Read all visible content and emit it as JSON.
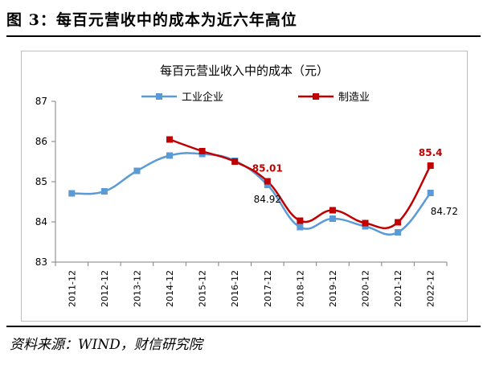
{
  "figure": {
    "title": "图 3：每百元营收中的成本为近六年高位",
    "source": "资料来源：WIND，财信研究院"
  },
  "colors": {
    "industry": "#5B9BD5",
    "manufacturing": "#C00000",
    "axis": "#7f7f7f",
    "border": "#bfbfbf"
  },
  "chart_data": {
    "type": "line",
    "title": "每百元营业收入中的成本（元）",
    "categories": [
      "2011-12",
      "2012-12",
      "2013-12",
      "2014-12",
      "2015-12",
      "2016-12",
      "2017-12",
      "2018-12",
      "2019-12",
      "2020-12",
      "2021-12",
      "2022-12"
    ],
    "ylim": [
      83,
      87
    ],
    "yticks": [
      83,
      84,
      85,
      86,
      87
    ],
    "legend_position": "top",
    "series": [
      {
        "name": "工业企业",
        "color": "#5B9BD5",
        "values": [
          84.71,
          84.76,
          85.27,
          85.65,
          85.69,
          85.52,
          84.92,
          83.87,
          84.08,
          83.89,
          83.74,
          84.72
        ]
      },
      {
        "name": "制造业",
        "color": "#C00000",
        "values": [
          null,
          null,
          null,
          86.05,
          85.76,
          85.5,
          85.01,
          84.03,
          84.29,
          83.97,
          83.99,
          85.4
        ]
      }
    ],
    "annotations": [
      {
        "series": 1,
        "index": 6,
        "text": "85.01",
        "color": "#C00000",
        "bold": true,
        "place": "above"
      },
      {
        "series": 0,
        "index": 6,
        "text": "84.92",
        "color": "#000000",
        "bold": false,
        "place": "below"
      },
      {
        "series": 1,
        "index": 11,
        "text": "85.4",
        "color": "#C00000",
        "bold": true,
        "place": "above"
      },
      {
        "series": 0,
        "index": 11,
        "text": "84.72",
        "color": "#000000",
        "bold": false,
        "place": "below-right"
      }
    ]
  }
}
